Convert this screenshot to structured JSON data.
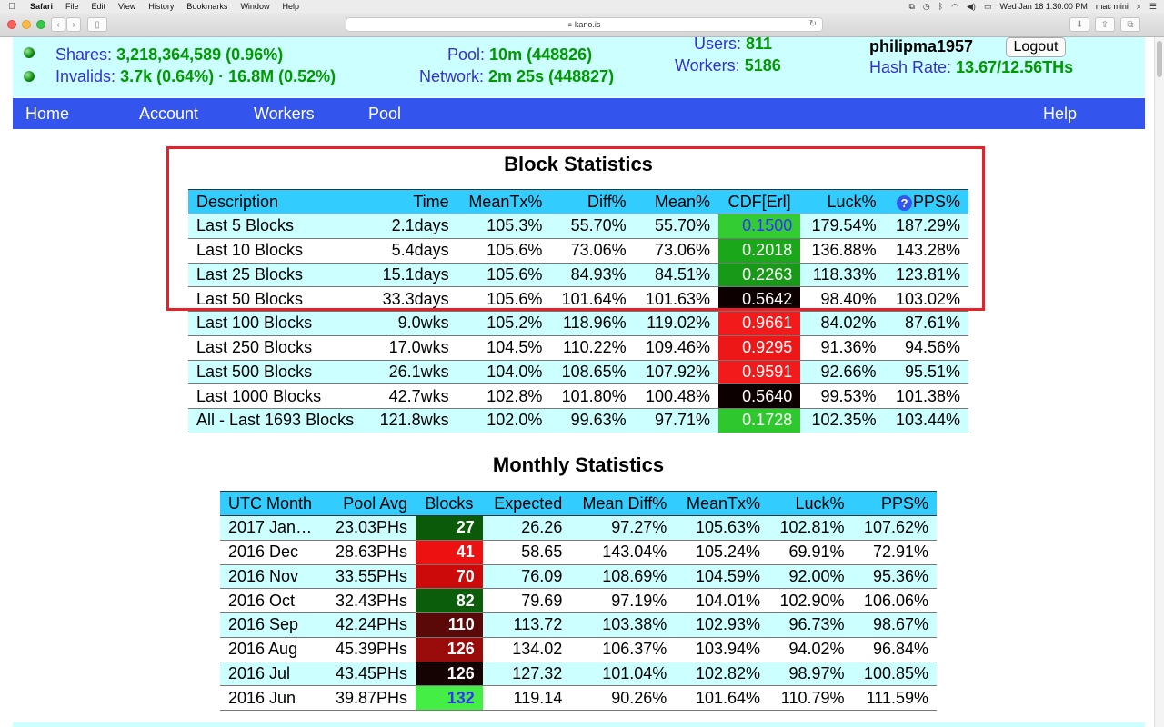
{
  "menubar": {
    "app": "Safari",
    "items": [
      "File",
      "Edit",
      "View",
      "History",
      "Bookmarks",
      "Window",
      "Help"
    ],
    "clock": "Wed Jan 18  1:30:00 PM",
    "user": "mac mini"
  },
  "browser": {
    "url": "kano.is"
  },
  "header": {
    "shares_label": "Shares:",
    "shares_value": "3,218,364,589 (0.96%)",
    "invalids_label": "Invalids:",
    "invalids_value": "3.7k (0.64%) · 16.8M (0.52%)",
    "pool_label": "Pool:",
    "pool_value": "10m (448826)",
    "network_label": "Network:",
    "network_value": "2m 25s (448827)",
    "users_label": "Users:",
    "users_value": "811",
    "workers_label": "Workers:",
    "workers_value": "5186",
    "username": "philipma1957",
    "logout_label": "Logout",
    "hashrate_label": "Hash Rate:",
    "hashrate_value": "13.67/12.56THs"
  },
  "nav": {
    "home": "Home",
    "account": "Account",
    "workers": "Workers",
    "pool": "Pool",
    "help": "Help"
  },
  "block_stats": {
    "title": "Block Statistics",
    "headers": [
      "Description",
      "Time",
      "MeanTx%",
      "Diff%",
      "Mean%",
      "CDF[Erl]",
      "Luck%",
      "PPS%"
    ],
    "help_icon": "?",
    "rows": [
      {
        "desc": "Last 5 Blocks",
        "time": "2.1days",
        "meantx": "105.3%",
        "diff": "55.70%",
        "mean": "55.70%",
        "cdf": "0.1500",
        "cdf_color": "#33cc33",
        "cdf_text": "#3333ff",
        "luck": "179.54%",
        "pps": "187.29%"
      },
      {
        "desc": "Last 10 Blocks",
        "time": "5.4days",
        "meantx": "105.6%",
        "diff": "73.06%",
        "mean": "73.06%",
        "cdf": "0.2018",
        "cdf_color": "#1aa81a",
        "cdf_text": "#ffffff",
        "luck": "136.88%",
        "pps": "143.28%"
      },
      {
        "desc": "Last 25 Blocks",
        "time": "15.1days",
        "meantx": "105.6%",
        "diff": "84.93%",
        "mean": "84.51%",
        "cdf": "0.2263",
        "cdf_color": "#189a18",
        "cdf_text": "#ffffff",
        "luck": "118.33%",
        "pps": "123.81%"
      },
      {
        "desc": "Last 50 Blocks",
        "time": "33.3days",
        "meantx": "105.6%",
        "diff": "101.64%",
        "mean": "101.63%",
        "cdf": "0.5642",
        "cdf_color": "#0d0000",
        "cdf_text": "#ffffff",
        "luck": "98.40%",
        "pps": "103.02%"
      },
      {
        "desc": "Last 100 Blocks",
        "time": "9.0wks",
        "meantx": "105.2%",
        "diff": "118.96%",
        "mean": "119.02%",
        "cdf": "0.9661",
        "cdf_color": "#f21a1a",
        "cdf_text": "#ffffff",
        "luck": "84.02%",
        "pps": "87.61%"
      },
      {
        "desc": "Last 250 Blocks",
        "time": "17.0wks",
        "meantx": "104.5%",
        "diff": "110.22%",
        "mean": "109.46%",
        "cdf": "0.9295",
        "cdf_color": "#ee1717",
        "cdf_text": "#ffffff",
        "luck": "91.36%",
        "pps": "94.56%"
      },
      {
        "desc": "Last 500 Blocks",
        "time": "26.1wks",
        "meantx": "104.0%",
        "diff": "108.65%",
        "mean": "107.92%",
        "cdf": "0.9591",
        "cdf_color": "#f21a1a",
        "cdf_text": "#ffffff",
        "luck": "92.66%",
        "pps": "95.51%"
      },
      {
        "desc": "Last 1000 Blocks",
        "time": "42.7wks",
        "meantx": "102.8%",
        "diff": "101.80%",
        "mean": "100.48%",
        "cdf": "0.5640",
        "cdf_color": "#0d0000",
        "cdf_text": "#ffffff",
        "luck": "99.53%",
        "pps": "101.38%"
      },
      {
        "desc": "All - Last 1693 Blocks",
        "time": "121.8wks",
        "meantx": "102.0%",
        "diff": "99.63%",
        "mean": "97.71%",
        "cdf": "0.1728",
        "cdf_color": "#2ec82e",
        "cdf_text": "#ffffff",
        "luck": "102.35%",
        "pps": "103.44%"
      }
    ]
  },
  "monthly_stats": {
    "title": "Monthly Statistics",
    "headers": [
      "UTC Month",
      "Pool Avg",
      "Blocks",
      "Expected",
      "Mean Diff%",
      "MeanTx%",
      "Luck%",
      "PPS%"
    ],
    "rows": [
      {
        "month": "2017 Jan…",
        "avg": "23.03PHs",
        "blocks": "27",
        "blocks_color": "#0a5a0a",
        "blocks_text": "#ffffff",
        "expected": "26.26",
        "meandiff": "97.27%",
        "meantx": "105.63%",
        "luck": "102.81%",
        "pps": "107.62%"
      },
      {
        "month": "2016 Dec",
        "avg": "28.63PHs",
        "blocks": "41",
        "blocks_color": "#ee1111",
        "blocks_text": "#ffffff",
        "expected": "58.65",
        "meandiff": "143.04%",
        "meantx": "105.24%",
        "luck": "69.91%",
        "pps": "72.91%"
      },
      {
        "month": "2016 Nov",
        "avg": "33.55PHs",
        "blocks": "70",
        "blocks_color": "#cc0a0a",
        "blocks_text": "#ffffff",
        "expected": "76.09",
        "meandiff": "108.69%",
        "meantx": "104.59%",
        "luck": "92.00%",
        "pps": "95.36%"
      },
      {
        "month": "2016 Oct",
        "avg": "32.43PHs",
        "blocks": "82",
        "blocks_color": "#0b5c0b",
        "blocks_text": "#ffffff",
        "expected": "79.69",
        "meandiff": "97.19%",
        "meantx": "104.01%",
        "luck": "102.90%",
        "pps": "106.06%"
      },
      {
        "month": "2016 Sep",
        "avg": "42.24PHs",
        "blocks": "110",
        "blocks_color": "#5a0808",
        "blocks_text": "#ffffff",
        "expected": "113.72",
        "meandiff": "103.38%",
        "meantx": "102.93%",
        "luck": "96.73%",
        "pps": "98.67%"
      },
      {
        "month": "2016 Aug",
        "avg": "45.39PHs",
        "blocks": "126",
        "blocks_color": "#9a0c0c",
        "blocks_text": "#ffffff",
        "expected": "134.02",
        "meandiff": "106.37%",
        "meantx": "103.94%",
        "luck": "94.02%",
        "pps": "96.84%"
      },
      {
        "month": "2016 Jul",
        "avg": "43.45PHs",
        "blocks": "126",
        "blocks_color": "#150303",
        "blocks_text": "#ffffff",
        "expected": "127.32",
        "meandiff": "101.04%",
        "meantx": "102.82%",
        "luck": "98.97%",
        "pps": "100.85%"
      },
      {
        "month": "2016 Jun",
        "avg": "39.87PHs",
        "blocks": "132",
        "blocks_color": "#44ee44",
        "blocks_text": "#3333ff",
        "expected": "119.14",
        "meandiff": "90.26%",
        "meantx": "101.64%",
        "luck": "110.79%",
        "pps": "111.59%"
      }
    ]
  },
  "colors": {
    "header_bg": "#ccffff",
    "nav_bg": "#3355ee",
    "table_header": "#33ccff",
    "highlight": "#e8202a"
  }
}
